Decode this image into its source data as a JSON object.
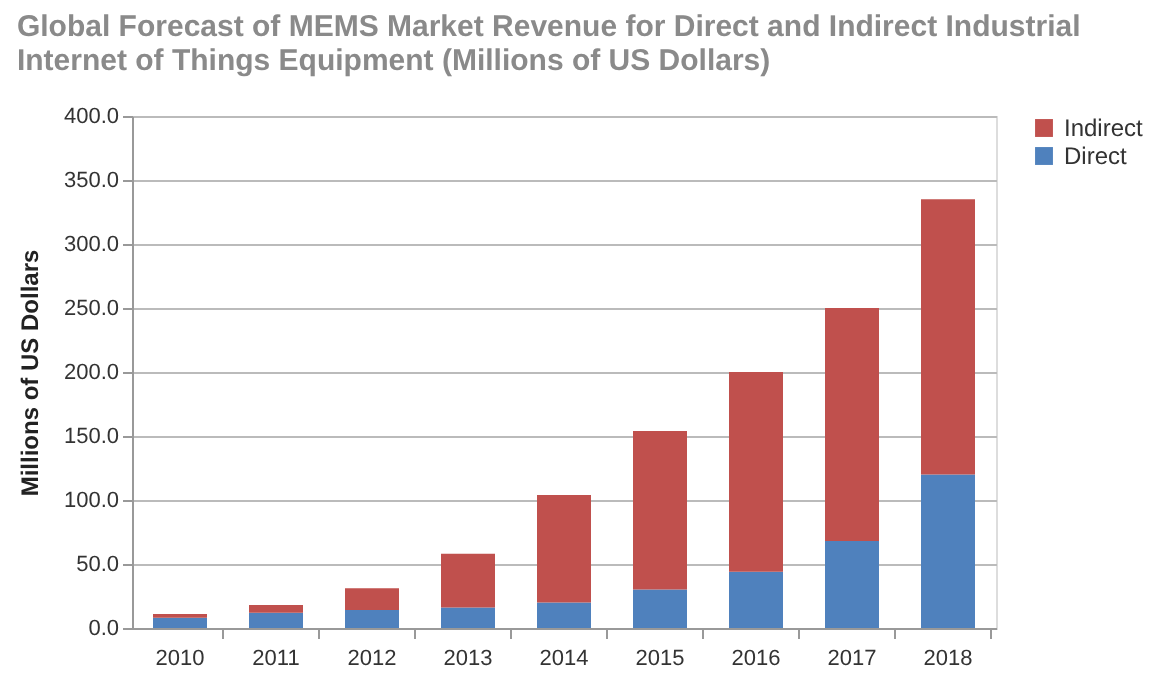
{
  "chart_data": {
    "type": "bar",
    "stacked": true,
    "title": "Global Forecast of MEMS Market Revenue for Direct and Indirect Industrial Internet of Things Equipment (Millions of US Dollars)",
    "ylabel": "Millions of US Dollars",
    "categories": [
      "2010",
      "2011",
      "2012",
      "2013",
      "2014",
      "2015",
      "2016",
      "2017",
      "2018"
    ],
    "series": [
      {
        "name": "Direct",
        "color": "#4f81bd",
        "values": [
          8,
          12,
          14,
          16,
          20,
          30,
          44,
          68,
          120
        ]
      },
      {
        "name": "Indirect",
        "color": "#c0504d",
        "values": [
          3,
          6,
          17,
          42,
          84,
          124,
          156,
          182,
          215
        ]
      }
    ],
    "ylim": [
      0,
      400
    ],
    "yticks": [
      {
        "value": 0,
        "label": "0.0"
      },
      {
        "value": 50,
        "label": "50.0"
      },
      {
        "value": 100,
        "label": "100.0"
      },
      {
        "value": 150,
        "label": "150.0"
      },
      {
        "value": 200,
        "label": "200.0"
      },
      {
        "value": 250,
        "label": "250.0"
      },
      {
        "value": 300,
        "label": "300.0"
      },
      {
        "value": 350,
        "label": "350.0"
      },
      {
        "value": 400,
        "label": "400.0"
      }
    ],
    "grid": "y",
    "legend": "right"
  }
}
